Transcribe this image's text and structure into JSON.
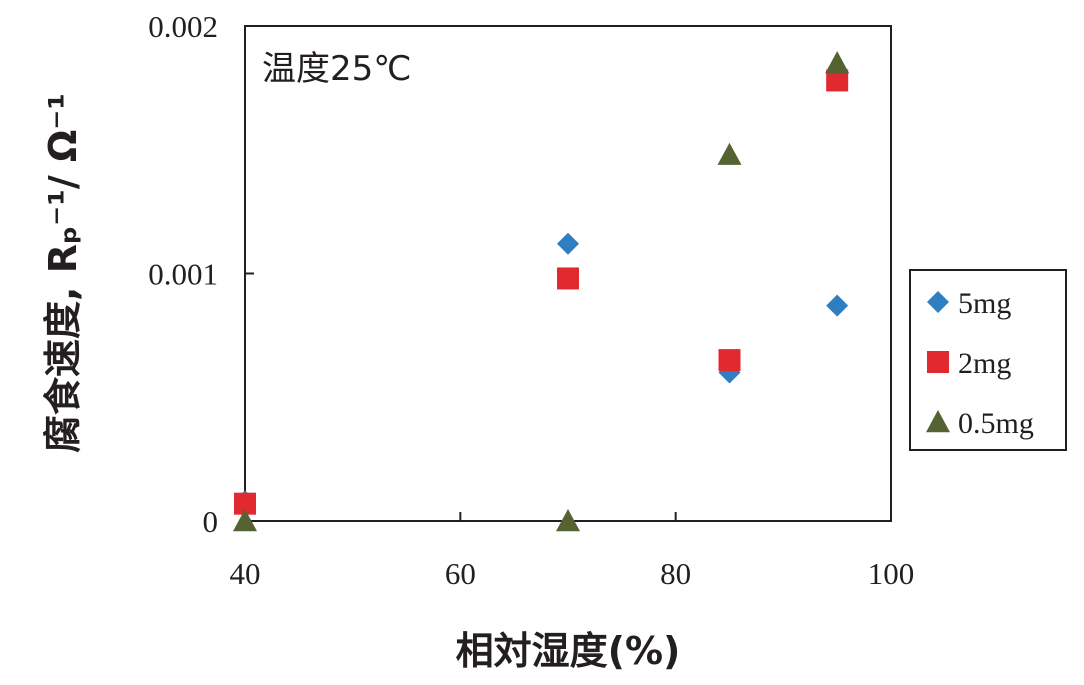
{
  "chart_data": {
    "type": "scatter",
    "title": "",
    "xlabel": "相対湿度(%)",
    "ylabel": "腐食速度, Rₚ⁻¹/ Ω⁻¹",
    "xlim": [
      40,
      100
    ],
    "ylim": [
      0,
      0.002
    ],
    "xticks": [
      40,
      60,
      80,
      100
    ],
    "yticks": [
      0,
      0.001,
      0.002
    ],
    "xtick_labels": [
      "40",
      "60",
      "80",
      "100"
    ],
    "ytick_labels": [
      "0",
      "0.001",
      "0.002"
    ],
    "grid": false,
    "legend_position": "right",
    "annotation": "温度25℃",
    "series": [
      {
        "name": "5mg",
        "marker": "diamond",
        "color": "#2f7ec1",
        "x": [
          40,
          70,
          85,
          95
        ],
        "y": [
          8e-05,
          0.00112,
          0.0006,
          0.00087
        ]
      },
      {
        "name": "2mg",
        "marker": "square",
        "color": "#e02a2f",
        "x": [
          40,
          70,
          85,
          95
        ],
        "y": [
          7e-05,
          0.00098,
          0.00065,
          0.00178
        ]
      },
      {
        "name": "0.5mg",
        "marker": "triangle",
        "color": "#556232",
        "x": [
          40,
          70,
          85,
          95
        ],
        "y": [
          0.0,
          0.0,
          0.00148,
          0.00185
        ]
      }
    ]
  }
}
